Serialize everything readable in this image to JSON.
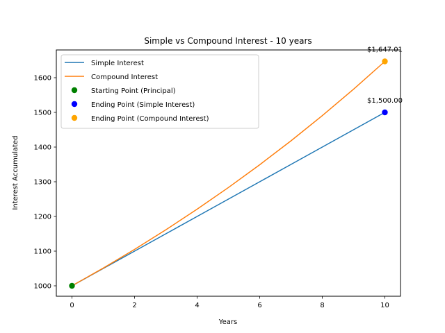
{
  "chart_data": {
    "type": "line",
    "title": "Simple vs Compound Interest - 10 years",
    "xlabel": "Years",
    "ylabel": "Interest Accumulated",
    "xlim": [
      -0.5,
      10.5
    ],
    "ylim": [
      970,
      1680
    ],
    "xticks": [
      0,
      2,
      4,
      6,
      8,
      10
    ],
    "yticks": [
      1000,
      1100,
      1200,
      1300,
      1400,
      1500,
      1600
    ],
    "grid": false,
    "legend_position": "upper-left",
    "x": [
      0,
      1,
      2,
      3,
      4,
      5,
      6,
      7,
      8,
      9,
      10
    ],
    "series": [
      {
        "name": "Simple Interest",
        "kind": "line",
        "color": "#1f77b4",
        "values": [
          1000,
          1050,
          1100,
          1150,
          1200,
          1250,
          1300,
          1350,
          1400,
          1450,
          1500
        ]
      },
      {
        "name": "Compound Interest",
        "kind": "line",
        "color": "#ff7f0e",
        "values": [
          1000,
          1051.16,
          1104.94,
          1161.47,
          1220.9,
          1283.36,
          1349.02,
          1418.04,
          1490.59,
          1566.85,
          1647.01
        ]
      }
    ],
    "points": [
      {
        "name": "Starting Point (Principal)",
        "x": 0,
        "y": 1000,
        "color": "#008000"
      },
      {
        "name": "Ending Point (Simple Interest)",
        "x": 10,
        "y": 1500,
        "color": "#0000ff"
      },
      {
        "name": "Ending Point (Compound Interest)",
        "x": 10,
        "y": 1647.01,
        "color": "#ffa500"
      }
    ],
    "annotations": [
      {
        "text": "$1,500.00",
        "x": 10,
        "y": 1500
      },
      {
        "text": "$1,647.01",
        "x": 10,
        "y": 1647.01
      }
    ]
  }
}
